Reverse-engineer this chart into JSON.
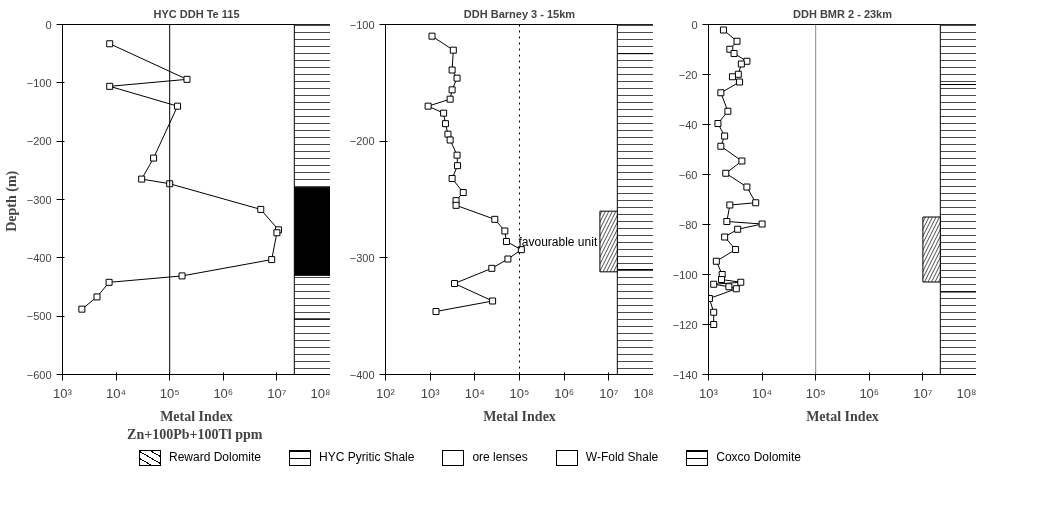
{
  "chart_data": [
    {
      "type": "line",
      "title": "HYC DDH Te 115",
      "xlabel": "Metal Index\nZn+100Pb+100Tl  ppm",
      "ylabel": "Depth  (m)",
      "log": "x",
      "grid": false,
      "marker": "square",
      "line_style": "solid",
      "xlim": [
        1000,
        100000000
      ],
      "ylim": [
        -600,
        0
      ],
      "xticks": [
        {
          "value": 1000,
          "label": "10³"
        },
        {
          "value": 10000,
          "label": "10⁴"
        },
        {
          "value": 100000,
          "label": "10⁵"
        },
        {
          "value": 1000000,
          "label": "10⁶"
        },
        {
          "value": 10000000,
          "label": "10⁷"
        },
        {
          "value": 100000000,
          "label": "10⁸"
        }
      ],
      "yticks": [
        0,
        -100,
        -200,
        -300,
        -400,
        -500,
        -600
      ],
      "series": [
        {
          "color": "#000000",
          "x": [
            7600,
            210000,
            7600,
            140000,
            50000,
            30000,
            100000,
            5000000,
            10700000,
            10000000,
            8000000,
            170000,
            7400,
            4400,
            2300
          ],
          "values": [
            -33,
            -94,
            -106,
            -140,
            -229,
            -265,
            -273,
            -317,
            -352,
            -357,
            -403,
            -431,
            -442,
            -467,
            -488
          ]
        }
      ],
      "ref_lines": [
        {
          "axis": "x",
          "value": 100000,
          "color": "#000000",
          "line_style": "solid"
        }
      ],
      "bands": [
        {
          "axis": "y",
          "from": 0,
          "to": -280,
          "color": "#ffffff"
        },
        {
          "axis": "y",
          "from": -280,
          "to": -430,
          "color": "#000000"
        },
        {
          "axis": "y",
          "from": -430,
          "to": -505,
          "color": "#ffffff"
        },
        {
          "axis": "y",
          "from": -505,
          "to": -600,
          "color": "#ffffff"
        }
      ]
    },
    {
      "type": "line",
      "title": "DDH Barney 3 - 15km",
      "xlabel": "Metal Index",
      "log": "x",
      "grid": false,
      "marker": "square",
      "line_style": "solid",
      "xlim": [
        100,
        100000000
      ],
      "ylim": [
        -400,
        -100
      ],
      "xticks": [
        {
          "value": 100,
          "label": "10²"
        },
        {
          "value": 1000,
          "label": "10³"
        },
        {
          "value": 10000,
          "label": "10⁴"
        },
        {
          "value": 100000,
          "label": "10⁵"
        },
        {
          "value": 1000000,
          "label": "10⁶"
        },
        {
          "value": 10000000,
          "label": "10⁷"
        },
        {
          "value": 100000000,
          "label": "10⁸"
        }
      ],
      "yticks": [
        -100,
        -200,
        -300,
        -400
      ],
      "series": [
        {
          "color": "#000000",
          "x": [
            1100,
            3300,
            3100,
            4000,
            3100,
            2800,
            900,
            2000,
            2200,
            2500,
            2800,
            4000,
            4100,
            3100,
            5500,
            3800,
            3800,
            28000,
            47000,
            51000,
            110000,
            55000,
            24000,
            3500,
            25000,
            1350
          ],
          "values": [
            -110,
            -122,
            -139,
            -146,
            -156,
            -164,
            -170,
            -176,
            -185,
            -194,
            -199,
            -212,
            -221,
            -232,
            -244,
            -251,
            -255,
            -267,
            -277,
            -286,
            -293,
            -301,
            -309,
            -322,
            -337,
            -346
          ]
        }
      ],
      "ref_lines": [
        {
          "axis": "x",
          "value": 100000,
          "color": "#000000",
          "line_style": "dotted"
        }
      ],
      "bands": [
        {
          "axis": "y",
          "from": -100,
          "to": -125,
          "color": "#ffffff"
        },
        {
          "axis": "y",
          "from": -125,
          "to": -310,
          "color": "#ffffff"
        },
        {
          "axis": "y",
          "from": -310,
          "to": -400,
          "color": "#ffffff"
        },
        {
          "axis": "y",
          "from": -260,
          "to": -312,
          "color": "#ffffff",
          "label": "favourable unit"
        }
      ]
    },
    {
      "type": "line",
      "title": "DDH BMR 2 - 23km",
      "xlabel": "Metal Index",
      "log": "x",
      "grid": false,
      "marker": "square",
      "line_style": "solid",
      "xlim": [
        1000,
        100000000
      ],
      "ylim": [
        -140,
        0
      ],
      "xticks": [
        {
          "value": 1000,
          "label": "10³"
        },
        {
          "value": 10000,
          "label": "10⁴"
        },
        {
          "value": 100000,
          "label": "10⁵"
        },
        {
          "value": 1000000,
          "label": "10⁶"
        },
        {
          "value": 10000000,
          "label": "10⁷"
        },
        {
          "value": 100000000,
          "label": "10⁸"
        }
      ],
      "yticks": [
        0,
        -20,
        -40,
        -60,
        -80,
        -100,
        -120,
        -140
      ],
      "series": [
        {
          "color": "#000000",
          "x": [
            1900,
            3400,
            2500,
            3000,
            5200,
            4100,
            3600,
            2800,
            3800,
            1700,
            2300,
            1500,
            2000,
            1700,
            4200,
            2100,
            5200,
            7600,
            2500,
            2200,
            10000,
            3500,
            2000,
            3200,
            1400,
            1800,
            1750,
            4000,
            1250,
            2400,
            3300,
            1040,
            1250,
            1250
          ],
          "values": [
            -2.2,
            -6.7,
            -9.9,
            -11.6,
            -14.7,
            -15.8,
            -19.9,
            -20.9,
            -23.0,
            -27.3,
            -34.7,
            -39.6,
            -44.6,
            -48.7,
            -54.6,
            -59.5,
            -65.0,
            -71.3,
            -72.2,
            -78.8,
            -79.8,
            -81.9,
            -85.0,
            -90.0,
            -94.7,
            -100.0,
            -102.0,
            -103.1,
            -103.9,
            -104.9,
            -105.7,
            -109.6,
            -115.1,
            -120.0
          ]
        }
      ],
      "ref_lines": [
        {
          "axis": "x",
          "value": 100000,
          "color": "#888888",
          "line_style": "solid"
        }
      ],
      "bands": [
        {
          "axis": "y",
          "from": 0,
          "to": -24,
          "color": "#ffffff"
        },
        {
          "axis": "y",
          "from": -24,
          "to": -107,
          "color": "#ffffff"
        },
        {
          "axis": "y",
          "from": -107,
          "to": -140,
          "color": "#ffffff"
        },
        {
          "axis": "y",
          "from": -77,
          "to": -103,
          "color": "#ffffff",
          "label": null
        }
      ]
    },
    {
      "type": "other",
      "annotations": [
        "Reward Dolomite",
        "HYC Pyritic Shale",
        "ore lenses",
        "W-Fold Shale",
        "Coxco Dolomite"
      ]
    }
  ]
}
